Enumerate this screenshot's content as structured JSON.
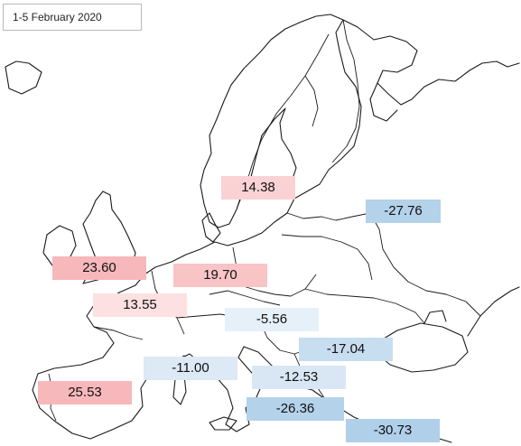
{
  "title": "1-5 February 2020",
  "colors": {
    "positive_strong": "#f7b8bb",
    "positive_light": "#fde0e1",
    "negative_strong": "#b4d2ea",
    "negative_light": "#e6f0f9"
  },
  "values": [
    {
      "id": "scandinavia",
      "label": "14.38",
      "value": 14.38
    },
    {
      "id": "russia-north",
      "label": "-27.76",
      "value": -27.76
    },
    {
      "id": "uk",
      "label": "23.60",
      "value": 23.6
    },
    {
      "id": "germany",
      "label": "19.70",
      "value": 19.7
    },
    {
      "id": "france",
      "label": "13.55",
      "value": 13.55
    },
    {
      "id": "austria",
      "label": "-5.56",
      "value": -5.56
    },
    {
      "id": "ukraine-south",
      "label": "-17.04",
      "value": -17.04
    },
    {
      "id": "italy-north",
      "label": "-11.00",
      "value": -11.0
    },
    {
      "id": "balkans",
      "label": "-12.53",
      "value": -12.53
    },
    {
      "id": "iberia",
      "label": "25.53",
      "value": 25.53
    },
    {
      "id": "italy-south",
      "label": "-26.36",
      "value": -26.36
    },
    {
      "id": "greece-turkey",
      "label": "-30.73",
      "value": -30.73
    }
  ]
}
